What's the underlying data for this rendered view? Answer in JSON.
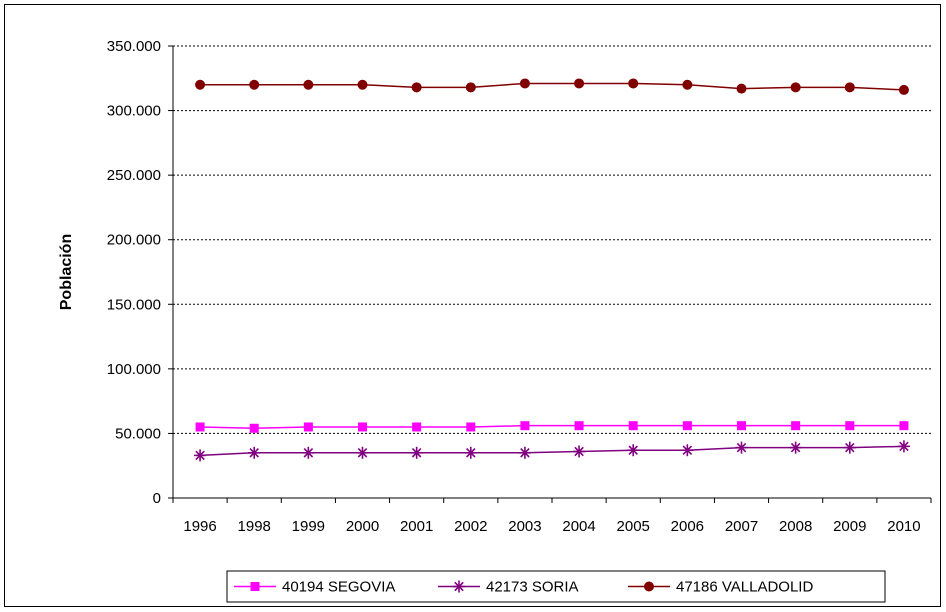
{
  "chart_data": {
    "type": "line",
    "title": "",
    "xlabel": "",
    "ylabel": "Población",
    "categories": [
      "1996",
      "1998",
      "1999",
      "2000",
      "2001",
      "2002",
      "2003",
      "2004",
      "2005",
      "2006",
      "2007",
      "2008",
      "2009",
      "2010"
    ],
    "ylim": [
      0,
      350000
    ],
    "yticks": [
      0,
      50000,
      100000,
      150000,
      200000,
      250000,
      300000,
      350000
    ],
    "ytick_labels": [
      "0",
      "50.000",
      "100.000",
      "150.000",
      "200.000",
      "250.000",
      "300.000",
      "350.000"
    ],
    "grid": "horizontal dotted",
    "legend_position": "bottom",
    "series": [
      {
        "name": "40194 SEGOVIA",
        "color": "#ff00ff",
        "marker": "square",
        "values": [
          55000,
          54000,
          55000,
          55000,
          55000,
          55000,
          56000,
          56000,
          56000,
          56000,
          56000,
          56000,
          56000,
          56000
        ]
      },
      {
        "name": "42173 SORIA",
        "color": "#800080",
        "marker": "asterisk",
        "values": [
          33000,
          35000,
          35000,
          35000,
          35000,
          35000,
          35000,
          36000,
          37000,
          37000,
          39000,
          39000,
          39000,
          40000
        ]
      },
      {
        "name": "47186 VALLADOLID",
        "color": "#800000",
        "marker": "circle",
        "values": [
          320000,
          320000,
          320000,
          320000,
          318000,
          318000,
          321000,
          321000,
          321000,
          320000,
          317000,
          318000,
          318000,
          316000
        ]
      }
    ]
  }
}
